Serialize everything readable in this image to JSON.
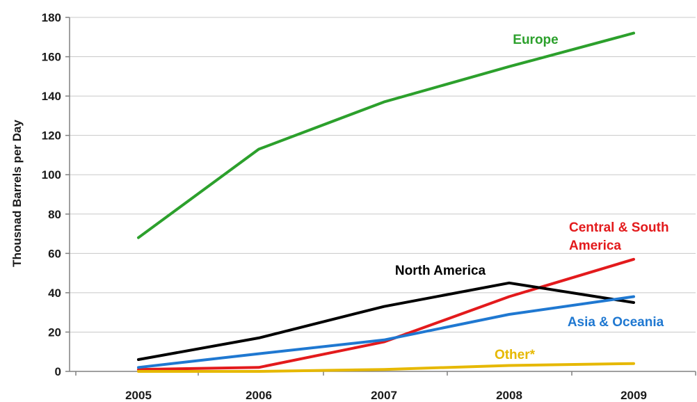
{
  "chart_data": {
    "type": "line",
    "title": "",
    "xlabel": "",
    "ylabel": "Thousnad Barrels per Day",
    "x": [
      "2005",
      "2006",
      "2007",
      "2008",
      "2009"
    ],
    "ylim": [
      0,
      180
    ],
    "yticks": [
      0,
      20,
      40,
      60,
      80,
      100,
      120,
      140,
      160,
      180
    ],
    "grid": true,
    "series": [
      {
        "name": "Europe",
        "label_lines": [
          "Europe"
        ],
        "color": "#2ca02c",
        "values": [
          68,
          113,
          137,
          155,
          172
        ]
      },
      {
        "name": "Central & South America",
        "label_lines": [
          "Central & South",
          "America"
        ],
        "color": "#e31a1c",
        "values": [
          1,
          2,
          15,
          38,
          57
        ]
      },
      {
        "name": "North America",
        "label_lines": [
          "North America"
        ],
        "color": "#000000",
        "values": [
          6,
          17,
          33,
          45,
          35
        ]
      },
      {
        "name": "Asia & Oceania",
        "label_lines": [
          "Asia & Oceania"
        ],
        "color": "#1f78d1",
        "values": [
          2,
          9,
          16,
          29,
          38
        ]
      },
      {
        "name": "Other*",
        "label_lines": [
          "Other*"
        ],
        "color": "#e6b800",
        "values": [
          0,
          0,
          1,
          3,
          4
        ]
      }
    ]
  }
}
